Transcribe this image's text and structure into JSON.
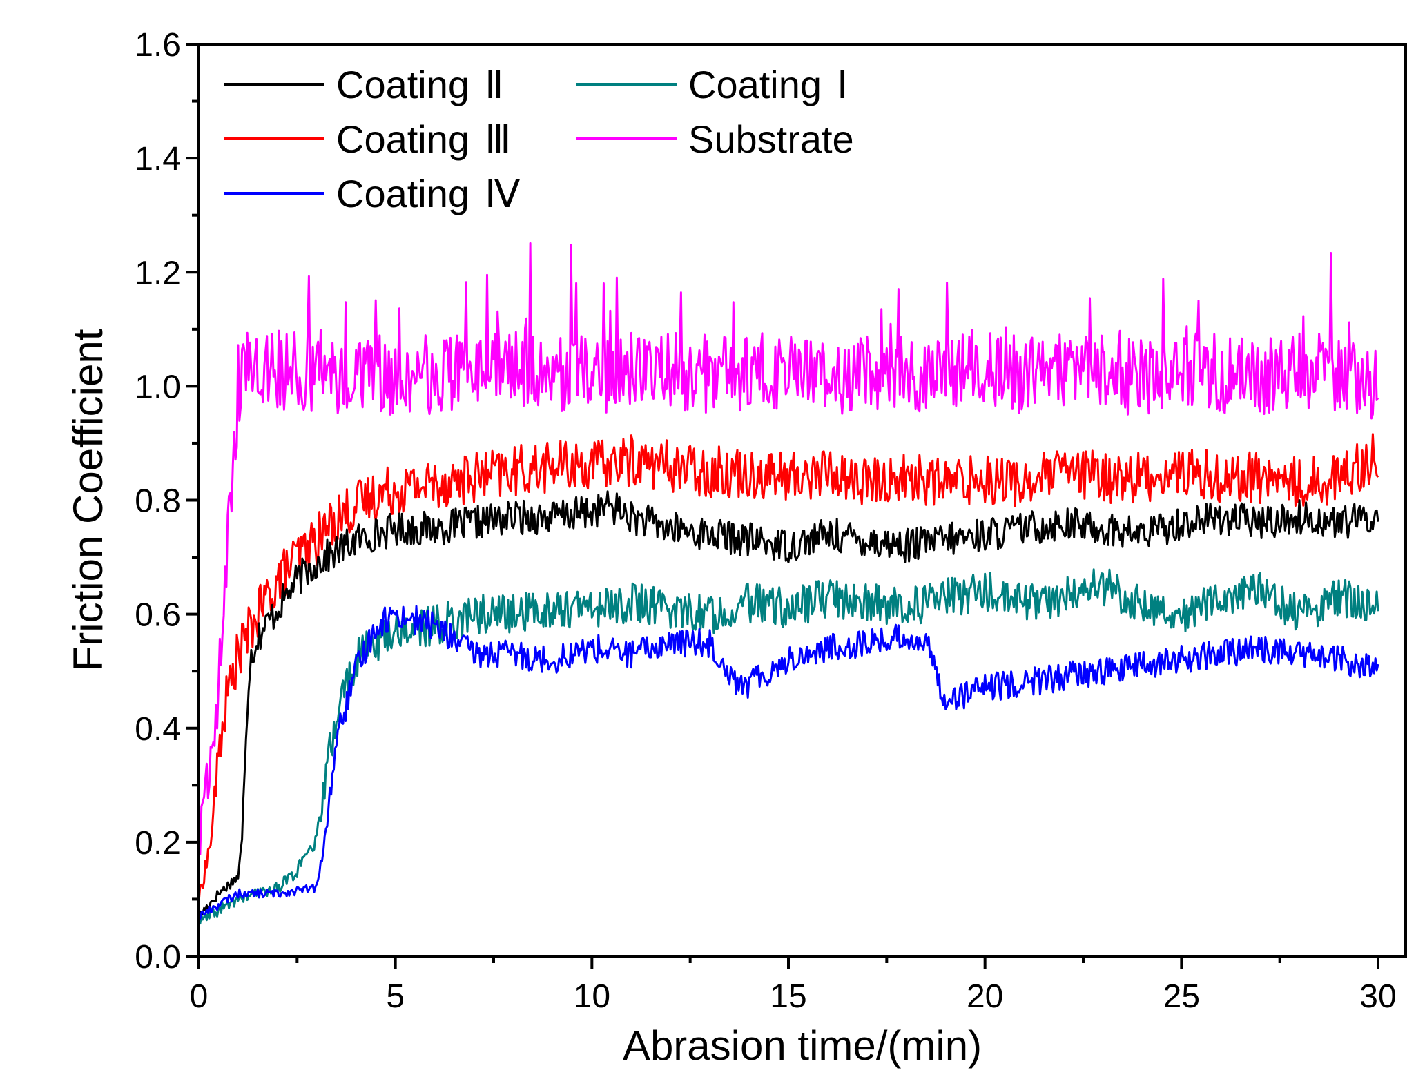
{
  "chart_data": {
    "type": "line",
    "xlabel": "Abrasion time/(min)",
    "ylabel": "Friction Coefficient",
    "xlim": [
      0,
      30
    ],
    "ylim": [
      0.0,
      1.6
    ],
    "x_ticks": [
      0,
      5,
      10,
      15,
      20,
      25,
      30
    ],
    "x_tick_labels": [
      "0",
      "5",
      "10",
      "15",
      "20",
      "25",
      "30"
    ],
    "y_ticks": [
      0.0,
      0.2,
      0.4,
      0.6,
      0.8,
      1.0,
      1.2,
      1.4,
      1.6
    ],
    "y_tick_labels": [
      "0.0",
      "0.2",
      "0.4",
      "0.6",
      "0.8",
      "1.0",
      "1.2",
      "1.4",
      "1.6"
    ],
    "grid": false,
    "legend_position": "top-left",
    "series": [
      {
        "name": "Coating Ⅱ",
        "name_base": "Coating",
        "name_numeral": "Ⅱ",
        "color": "#000000",
        "x": [
          0,
          0.5,
          1.0,
          1.1,
          1.2,
          1.3,
          1.5,
          2,
          2.5,
          3,
          3.5,
          4,
          5,
          6,
          7,
          8,
          9,
          10,
          10.5,
          11,
          12,
          13,
          14,
          15,
          16,
          17,
          18,
          19,
          20,
          21,
          22,
          23,
          24,
          25,
          26,
          27,
          28,
          29,
          30
        ],
        "y": [
          0.07,
          0.11,
          0.14,
          0.2,
          0.4,
          0.52,
          0.56,
          0.61,
          0.66,
          0.69,
          0.71,
          0.73,
          0.75,
          0.75,
          0.76,
          0.77,
          0.77,
          0.78,
          0.79,
          0.77,
          0.75,
          0.74,
          0.73,
          0.72,
          0.74,
          0.73,
          0.72,
          0.73,
          0.74,
          0.75,
          0.76,
          0.75,
          0.74,
          0.76,
          0.77,
          0.76,
          0.77,
          0.76,
          0.77
        ]
      },
      {
        "name": "Coating Ⅲ",
        "name_base": "Coating",
        "name_numeral": "Ⅲ",
        "color": "#ff0000",
        "x": [
          0,
          0.3,
          0.5,
          0.7,
          1.0,
          1.5,
          2,
          2.5,
          3,
          3.5,
          4,
          4.5,
          5,
          6,
          7,
          8,
          9,
          10,
          11,
          12,
          13,
          14,
          15,
          16,
          17,
          18,
          19,
          20,
          21,
          22,
          23,
          24,
          25,
          26,
          27,
          28,
          29,
          30
        ],
        "y": [
          0.1,
          0.2,
          0.35,
          0.45,
          0.53,
          0.6,
          0.66,
          0.7,
          0.73,
          0.77,
          0.79,
          0.81,
          0.82,
          0.83,
          0.84,
          0.85,
          0.86,
          0.86,
          0.87,
          0.86,
          0.85,
          0.85,
          0.84,
          0.85,
          0.83,
          0.84,
          0.83,
          0.84,
          0.83,
          0.85,
          0.84,
          0.84,
          0.85,
          0.84,
          0.84,
          0.83,
          0.84,
          0.88
        ]
      },
      {
        "name": "Coating Ⅳ",
        "name_base": "Coating",
        "name_numeral": "Ⅳ",
        "color": "#0000ff",
        "x": [
          0,
          1,
          2,
          3,
          3.2,
          3.5,
          4,
          4.5,
          5,
          6,
          7,
          8,
          9,
          10,
          11,
          12,
          13,
          13.8,
          14,
          15,
          16,
          17,
          18,
          18.5,
          19,
          20,
          21,
          22,
          23,
          24,
          25,
          26,
          27,
          28,
          29,
          30
        ],
        "y": [
          0.07,
          0.11,
          0.11,
          0.12,
          0.2,
          0.38,
          0.5,
          0.58,
          0.6,
          0.58,
          0.53,
          0.53,
          0.52,
          0.54,
          0.53,
          0.55,
          0.55,
          0.47,
          0.48,
          0.52,
          0.54,
          0.55,
          0.56,
          0.55,
          0.45,
          0.47,
          0.48,
          0.49,
          0.5,
          0.51,
          0.52,
          0.53,
          0.54,
          0.53,
          0.52,
          0.5
        ]
      },
      {
        "name": "Coating Ⅰ",
        "name_base": "Coating",
        "name_numeral": "Ⅰ",
        "color": "#008080",
        "x": [
          0,
          1,
          2,
          2.5,
          3,
          3.3,
          3.6,
          4,
          4.5,
          5,
          6,
          7,
          8,
          9,
          10,
          11,
          12,
          13,
          14,
          15,
          16,
          17,
          18,
          19,
          20,
          21,
          22,
          23,
          24,
          25,
          26,
          27,
          28,
          29,
          30
        ],
        "y": [
          0.06,
          0.1,
          0.12,
          0.15,
          0.2,
          0.35,
          0.45,
          0.52,
          0.55,
          0.57,
          0.58,
          0.6,
          0.6,
          0.61,
          0.61,
          0.62,
          0.61,
          0.6,
          0.62,
          0.61,
          0.63,
          0.62,
          0.61,
          0.63,
          0.64,
          0.62,
          0.63,
          0.65,
          0.62,
          0.6,
          0.63,
          0.64,
          0.6,
          0.63,
          0.61
        ]
      },
      {
        "name": "Substrate",
        "name_base": "Substrate",
        "name_numeral": "",
        "color": "#ff00ff",
        "x": [
          0,
          0.2,
          0.4,
          0.6,
          0.8,
          1.0,
          1.2,
          1.5,
          2,
          3,
          4,
          5,
          6,
          7,
          8,
          9,
          10,
          11,
          12,
          13,
          14,
          15,
          16,
          17,
          18,
          19,
          20,
          21,
          22,
          23,
          24,
          25,
          26,
          27,
          28,
          29,
          30
        ],
        "y": [
          0.19,
          0.3,
          0.4,
          0.6,
          0.8,
          0.98,
          1.05,
          1.04,
          1.03,
          1.02,
          1.02,
          1.02,
          1.02,
          1.03,
          1.03,
          1.02,
          1.02,
          1.03,
          1.03,
          1.02,
          1.02,
          1.03,
          1.02,
          1.02,
          1.02,
          1.02,
          1.03,
          1.02,
          1.03,
          1.02,
          1.02,
          1.03,
          1.02,
          1.02,
          1.03,
          1.02,
          0.98
        ]
      }
    ]
  }
}
